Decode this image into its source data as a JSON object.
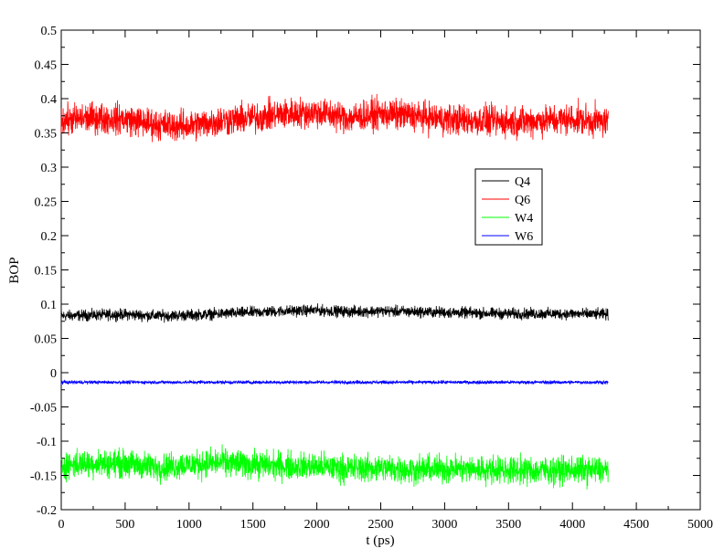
{
  "chart_data": {
    "type": "line",
    "title": "",
    "xlabel": "t (ps)",
    "ylabel": "BOP",
    "xlim": [
      0,
      5000
    ],
    "ylim": [
      -0.2,
      0.5
    ],
    "xticks": [
      0,
      500,
      1000,
      1500,
      2000,
      2500,
      3000,
      3500,
      4000,
      4500,
      5000
    ],
    "yticks": [
      -0.2,
      -0.15,
      -0.1,
      -0.05,
      0,
      0.05,
      0.1,
      0.15,
      0.2,
      0.25,
      0.3,
      0.35,
      0.4,
      0.45,
      0.5
    ],
    "xtick_labels": [
      "0",
      "500",
      "1000",
      "1500",
      "2000",
      "2500",
      "3000",
      "3500",
      "4000",
      "4500",
      "5000"
    ],
    "ytick_labels": [
      "-0.2",
      "-0.15",
      "-0.1",
      "-0.05",
      "0",
      "0.05",
      "0.1",
      "0.15",
      "0.2",
      "0.25",
      "0.3",
      "0.35",
      "0.4",
      "0.45",
      "0.5"
    ],
    "grid": false,
    "legend": {
      "placement": "center-right",
      "box": true
    },
    "x": [
      0,
      250,
      500,
      750,
      1000,
      1250,
      1500,
      1750,
      2000,
      2250,
      2500,
      2750,
      3000,
      3250,
      3500,
      3750,
      4000,
      4280
    ],
    "series": [
      {
        "name": "Q4",
        "color": "#000000",
        "noise": 0.004,
        "values": [
          0.083,
          0.084,
          0.085,
          0.083,
          0.084,
          0.086,
          0.088,
          0.09,
          0.091,
          0.089,
          0.09,
          0.089,
          0.088,
          0.087,
          0.086,
          0.086,
          0.086,
          0.085
        ]
      },
      {
        "name": "Q6",
        "color": "#ff0000",
        "noise": 0.011,
        "values": [
          0.368,
          0.372,
          0.37,
          0.362,
          0.36,
          0.368,
          0.372,
          0.378,
          0.38,
          0.372,
          0.378,
          0.375,
          0.37,
          0.368,
          0.366,
          0.368,
          0.37,
          0.366
        ]
      },
      {
        "name": "W4",
        "color": "#00ff00",
        "noise": 0.01,
        "values": [
          -0.135,
          -0.132,
          -0.133,
          -0.138,
          -0.134,
          -0.131,
          -0.134,
          -0.136,
          -0.137,
          -0.14,
          -0.139,
          -0.142,
          -0.14,
          -0.141,
          -0.142,
          -0.143,
          -0.142,
          -0.143
        ]
      },
      {
        "name": "W6",
        "color": "#0000ff",
        "noise": 0.0012,
        "values": [
          -0.014,
          -0.014,
          -0.014,
          -0.014,
          -0.014,
          -0.014,
          -0.014,
          -0.014,
          -0.014,
          -0.014,
          -0.014,
          -0.014,
          -0.014,
          -0.014,
          -0.014,
          -0.014,
          -0.014,
          -0.014
        ]
      }
    ]
  }
}
